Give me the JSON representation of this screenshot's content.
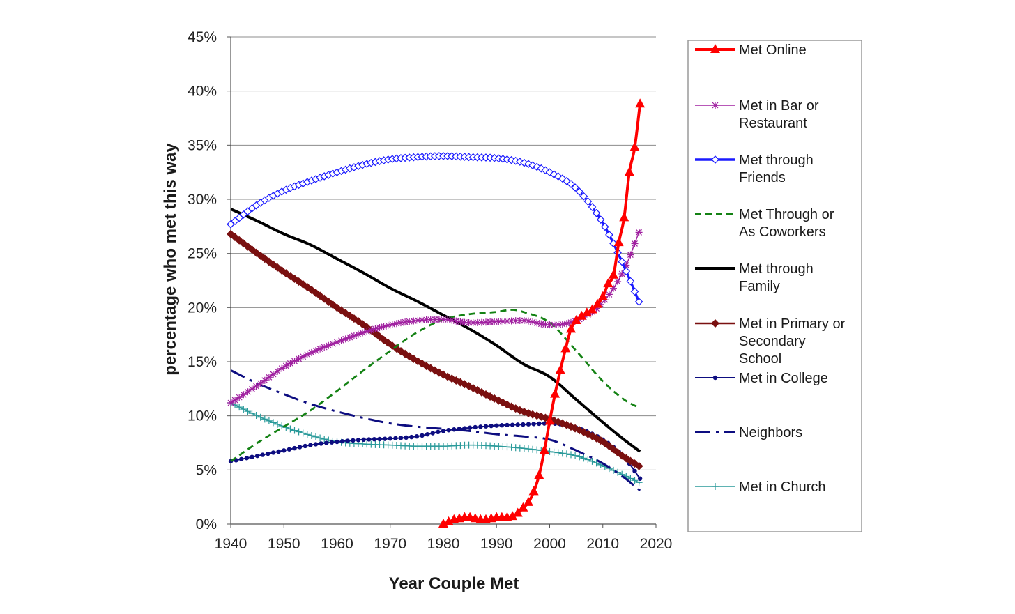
{
  "chart_data": {
    "type": "line",
    "title": "",
    "xlabel": "Year Couple Met",
    "ylabel": "percentage who met this way",
    "xlim": [
      1940,
      2020
    ],
    "ylim": [
      0,
      45
    ],
    "x_ticks": [
      "1940",
      "1950",
      "1960",
      "1970",
      "1980",
      "1990",
      "2000",
      "2010",
      "2020"
    ],
    "y_ticks": [
      "0%",
      "5%",
      "10%",
      "15%",
      "20%",
      "25%",
      "30%",
      "35%",
      "40%",
      "45%"
    ],
    "grid": "horizontal",
    "legend_position": "right",
    "series": [
      {
        "name": "Met Online",
        "color": "#ff0000",
        "style": "solid",
        "marker": "triangle",
        "points": [
          [
            1980,
            0
          ],
          [
            1981,
            0.2
          ],
          [
            1982,
            0.4
          ],
          [
            1983,
            0.5
          ],
          [
            1984,
            0.6
          ],
          [
            1985,
            0.6
          ],
          [
            1986,
            0.5
          ],
          [
            1987,
            0.4
          ],
          [
            1988,
            0.4
          ],
          [
            1989,
            0.5
          ],
          [
            1990,
            0.6
          ],
          [
            1991,
            0.6
          ],
          [
            1992,
            0.6
          ],
          [
            1993,
            0.7
          ],
          [
            1994,
            1.0
          ],
          [
            1995,
            1.5
          ],
          [
            1996,
            2.0
          ],
          [
            1997,
            3.0
          ],
          [
            1998,
            4.5
          ],
          [
            1999,
            6.8
          ],
          [
            2000,
            9.5
          ],
          [
            2001,
            12.0
          ],
          [
            2002,
            14.2
          ],
          [
            2003,
            16.2
          ],
          [
            2004,
            18.0
          ],
          [
            2005,
            18.8
          ],
          [
            2006,
            19.2
          ],
          [
            2007,
            19.5
          ],
          [
            2008,
            19.8
          ],
          [
            2009,
            20.3
          ],
          [
            2010,
            21.0
          ],
          [
            2011,
            22.2
          ],
          [
            2012,
            23.0
          ],
          [
            2013,
            26.0
          ],
          [
            2014,
            28.3
          ],
          [
            2015,
            32.5
          ],
          [
            2016,
            34.8
          ],
          [
            2017,
            38.8
          ]
        ]
      },
      {
        "name": "Met in Bar or Restaurant",
        "color": "#a020a0",
        "style": "solid",
        "marker": "asterisk",
        "points": [
          [
            1940,
            11.2
          ],
          [
            1945,
            12.8
          ],
          [
            1950,
            14.5
          ],
          [
            1955,
            15.8
          ],
          [
            1960,
            16.8
          ],
          [
            1965,
            17.7
          ],
          [
            1970,
            18.4
          ],
          [
            1975,
            18.8
          ],
          [
            1980,
            18.9
          ],
          [
            1985,
            18.6
          ],
          [
            1990,
            18.7
          ],
          [
            1995,
            18.8
          ],
          [
            2000,
            18.4
          ],
          [
            2005,
            18.8
          ],
          [
            2010,
            20.5
          ],
          [
            2014,
            23.5
          ],
          [
            2017,
            27.2
          ]
        ]
      },
      {
        "name": "Met through Friends",
        "color": "#1a1aff",
        "style": "solid",
        "marker": "diamond",
        "points": [
          [
            1940,
            27.7
          ],
          [
            1945,
            29.5
          ],
          [
            1950,
            30.8
          ],
          [
            1955,
            31.7
          ],
          [
            1960,
            32.5
          ],
          [
            1965,
            33.2
          ],
          [
            1970,
            33.7
          ],
          [
            1975,
            33.9
          ],
          [
            1980,
            34.0
          ],
          [
            1985,
            33.9
          ],
          [
            1990,
            33.8
          ],
          [
            1995,
            33.4
          ],
          [
            2000,
            32.5
          ],
          [
            2005,
            31.0
          ],
          [
            2010,
            27.8
          ],
          [
            2014,
            23.8
          ],
          [
            2017,
            20.3
          ]
        ]
      },
      {
        "name": "Met Through or As Coworkers",
        "color": "#148214",
        "style": "dashed",
        "marker": "none",
        "points": [
          [
            1940,
            5.8
          ],
          [
            1945,
            7.5
          ],
          [
            1950,
            9.0
          ],
          [
            1955,
            10.5
          ],
          [
            1960,
            12.3
          ],
          [
            1965,
            14.2
          ],
          [
            1970,
            16.0
          ],
          [
            1975,
            17.7
          ],
          [
            1980,
            18.9
          ],
          [
            1985,
            19.4
          ],
          [
            1990,
            19.6
          ],
          [
            1993,
            19.8
          ],
          [
            1995,
            19.6
          ],
          [
            2000,
            18.6
          ],
          [
            2005,
            16.0
          ],
          [
            2010,
            13.2
          ],
          [
            2014,
            11.5
          ],
          [
            2017,
            10.7
          ]
        ]
      },
      {
        "name": "Met through Family",
        "color": "#000000",
        "style": "solid",
        "marker": "none",
        "points": [
          [
            1940,
            29.1
          ],
          [
            1945,
            28.0
          ],
          [
            1950,
            26.8
          ],
          [
            1955,
            25.8
          ],
          [
            1960,
            24.5
          ],
          [
            1965,
            23.2
          ],
          [
            1970,
            21.8
          ],
          [
            1975,
            20.6
          ],
          [
            1980,
            19.3
          ],
          [
            1985,
            18.0
          ],
          [
            1990,
            16.5
          ],
          [
            1995,
            14.8
          ],
          [
            2000,
            13.6
          ],
          [
            2005,
            11.5
          ],
          [
            2010,
            9.4
          ],
          [
            2014,
            7.8
          ],
          [
            2017,
            6.7
          ]
        ]
      },
      {
        "name": "Met in Primary or Secondary School",
        "color": "#7a1010",
        "style": "solid",
        "marker": "diamond-filled",
        "points": [
          [
            1940,
            26.8
          ],
          [
            1945,
            25.0
          ],
          [
            1950,
            23.3
          ],
          [
            1955,
            21.7
          ],
          [
            1960,
            20.0
          ],
          [
            1965,
            18.4
          ],
          [
            1970,
            16.6
          ],
          [
            1975,
            15.1
          ],
          [
            1980,
            13.8
          ],
          [
            1985,
            12.7
          ],
          [
            1990,
            11.5
          ],
          [
            1995,
            10.4
          ],
          [
            2000,
            9.7
          ],
          [
            2005,
            8.8
          ],
          [
            2010,
            7.6
          ],
          [
            2014,
            6.2
          ],
          [
            2017,
            5.3
          ]
        ]
      },
      {
        "name": "Met in College",
        "color": "#0d0d80",
        "style": "solid",
        "marker": "dot",
        "points": [
          [
            1940,
            5.8
          ],
          [
            1945,
            6.3
          ],
          [
            1950,
            6.8
          ],
          [
            1955,
            7.3
          ],
          [
            1960,
            7.6
          ],
          [
            1965,
            7.8
          ],
          [
            1970,
            7.9
          ],
          [
            1975,
            8.1
          ],
          [
            1980,
            8.6
          ],
          [
            1985,
            8.9
          ],
          [
            1990,
            9.1
          ],
          [
            1995,
            9.2
          ],
          [
            2000,
            9.3
          ],
          [
            2005,
            8.9
          ],
          [
            2010,
            7.8
          ],
          [
            2014,
            6.2
          ],
          [
            2017,
            4.2
          ]
        ]
      },
      {
        "name": "Neighbors",
        "color": "#0d0d80",
        "style": "dashdot",
        "marker": "none",
        "points": [
          [
            1940,
            14.2
          ],
          [
            1945,
            13.0
          ],
          [
            1950,
            12.0
          ],
          [
            1955,
            11.1
          ],
          [
            1960,
            10.4
          ],
          [
            1965,
            9.8
          ],
          [
            1970,
            9.3
          ],
          [
            1975,
            9.0
          ],
          [
            1980,
            8.8
          ],
          [
            1985,
            8.6
          ],
          [
            1990,
            8.3
          ],
          [
            1995,
            8.1
          ],
          [
            2000,
            7.8
          ],
          [
            2005,
            6.8
          ],
          [
            2010,
            5.6
          ],
          [
            2014,
            4.3
          ],
          [
            2017,
            3.1
          ]
        ]
      },
      {
        "name": "Met in Church",
        "color": "#2a9a9a",
        "style": "solid",
        "marker": "plus",
        "points": [
          [
            1940,
            11.2
          ],
          [
            1945,
            10.0
          ],
          [
            1950,
            9.0
          ],
          [
            1955,
            8.2
          ],
          [
            1960,
            7.6
          ],
          [
            1965,
            7.4
          ],
          [
            1970,
            7.3
          ],
          [
            1975,
            7.2
          ],
          [
            1980,
            7.2
          ],
          [
            1985,
            7.3
          ],
          [
            1990,
            7.2
          ],
          [
            1995,
            7.0
          ],
          [
            2000,
            6.7
          ],
          [
            2005,
            6.3
          ],
          [
            2010,
            5.4
          ],
          [
            2014,
            4.5
          ],
          [
            2017,
            3.8
          ]
        ]
      }
    ],
    "legend": [
      {
        "label": "Met Online",
        "lines": [
          "Met Online"
        ]
      },
      {
        "label": "Met in Bar or Restaurant",
        "lines": [
          "Met in Bar or",
          "Restaurant"
        ]
      },
      {
        "label": "Met through Friends",
        "lines": [
          "Met through",
          "Friends"
        ]
      },
      {
        "label": "Met Through or As Coworkers",
        "lines": [
          "Met Through or",
          "As Coworkers"
        ]
      },
      {
        "label": "Met through Family",
        "lines": [
          "Met through",
          "Family"
        ]
      },
      {
        "label": "Met in Primary or Secondary School",
        "lines": [
          "Met in Primary or",
          "Secondary",
          "School"
        ]
      },
      {
        "label": "Met in College",
        "lines": [
          "Met in College"
        ]
      },
      {
        "label": "Neighbors",
        "lines": [
          "Neighbors"
        ]
      },
      {
        "label": "Met in Church",
        "lines": [
          "Met in Church"
        ]
      }
    ]
  }
}
